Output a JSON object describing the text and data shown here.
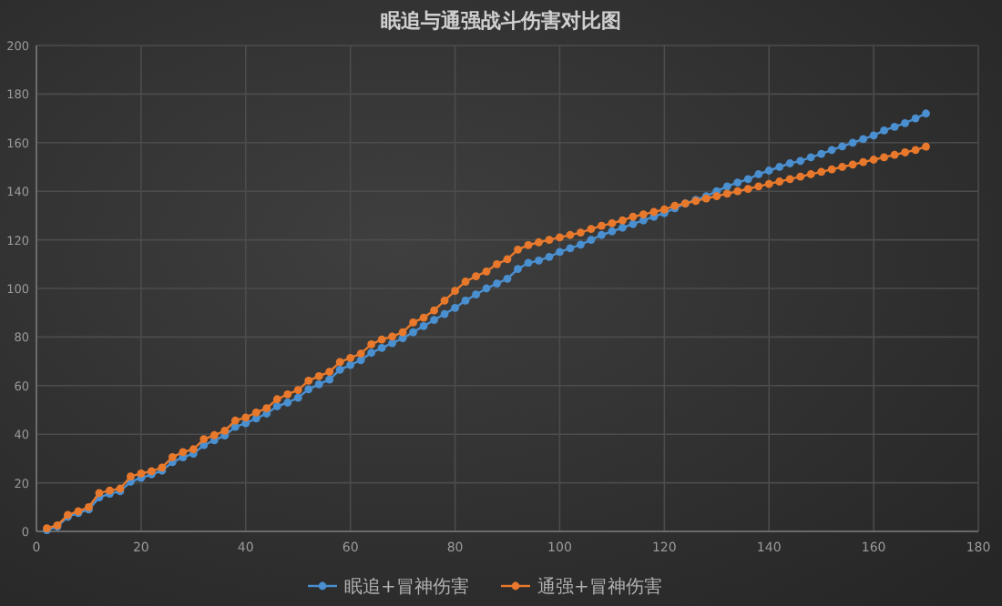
{
  "chart_data": {
    "type": "line",
    "title": "眠追与通强战斗伤害对比图",
    "x": [
      2,
      4,
      6,
      8,
      10,
      12,
      14,
      16,
      18,
      20,
      22,
      24,
      26,
      28,
      30,
      32,
      34,
      36,
      38,
      40,
      42,
      44,
      46,
      48,
      50,
      52,
      54,
      56,
      58,
      60,
      62,
      64,
      66,
      68,
      70,
      72,
      74,
      76,
      78,
      80,
      82,
      84,
      86,
      88,
      90,
      92,
      94,
      96,
      98,
      100,
      102,
      104,
      106,
      108,
      110,
      112,
      114,
      116,
      118,
      120,
      122,
      124,
      126,
      128,
      130,
      132,
      134,
      136,
      138,
      140,
      142,
      144,
      146,
      148,
      150,
      152,
      154,
      156,
      158,
      160,
      162,
      164,
      166,
      168,
      170
    ],
    "series": [
      {
        "name": "眠追+冒神伤害",
        "color": "#4a8fd0",
        "values": [
          0.5,
          2,
          6,
          7.5,
          9,
          14,
          15.5,
          16.5,
          20.5,
          22,
          23.5,
          25,
          28.5,
          30.5,
          32,
          35.5,
          37.5,
          39.5,
          43,
          44.5,
          46.5,
          48.5,
          51.5,
          53,
          55,
          58.5,
          60.5,
          62.5,
          66.5,
          68.5,
          70.5,
          73.5,
          75.5,
          77.5,
          79.5,
          82,
          84.5,
          87,
          89.5,
          92,
          95,
          97.5,
          100,
          102,
          104,
          108,
          110.5,
          111.5,
          113,
          115,
          116.5,
          118,
          120,
          122,
          123.5,
          125,
          126.5,
          128,
          129.5,
          131,
          133,
          135,
          136.5,
          138,
          140,
          142,
          143.6,
          145,
          147,
          148.5,
          150,
          151.5,
          152.5,
          154,
          155.4,
          157,
          158.5,
          160,
          161.5,
          163,
          165,
          166.5,
          168,
          170,
          172
        ]
      },
      {
        "name": "通强+冒神伤害",
        "color": "#e8792c",
        "values": [
          1.3,
          2.5,
          6.8,
          8.3,
          10,
          15.8,
          16.8,
          17.6,
          22.6,
          23.8,
          24.8,
          26.3,
          30.6,
          32.6,
          33.8,
          38,
          39.6,
          41.4,
          45.6,
          46.9,
          48.9,
          50.7,
          54.4,
          56.4,
          58.2,
          62,
          63.9,
          65.7,
          69.7,
          71.4,
          73.2,
          77,
          79,
          80.2,
          82,
          86,
          88,
          91,
          95,
          99,
          102.8,
          105,
          107,
          110,
          112,
          116,
          117.8,
          119,
          120,
          121,
          122,
          123,
          124.5,
          125.8,
          126.8,
          128,
          129.5,
          130.5,
          131.5,
          132.5,
          134,
          135,
          136,
          137,
          138,
          139,
          140,
          141,
          142,
          143,
          144,
          145,
          146,
          147,
          148,
          149,
          150,
          151,
          152,
          153,
          154,
          155,
          156,
          157,
          158.4
        ]
      }
    ],
    "xlim": [
      0,
      180
    ],
    "xticks": [
      0,
      20,
      40,
      60,
      80,
      100,
      120,
      140,
      160,
      180
    ],
    "ylim": [
      0,
      200
    ],
    "yticks": [
      0,
      20,
      40,
      60,
      80,
      100,
      120,
      140,
      160,
      180,
      200
    ],
    "grid": true,
    "legend": "bottom",
    "marker": "circle",
    "line_style": "solid"
  }
}
